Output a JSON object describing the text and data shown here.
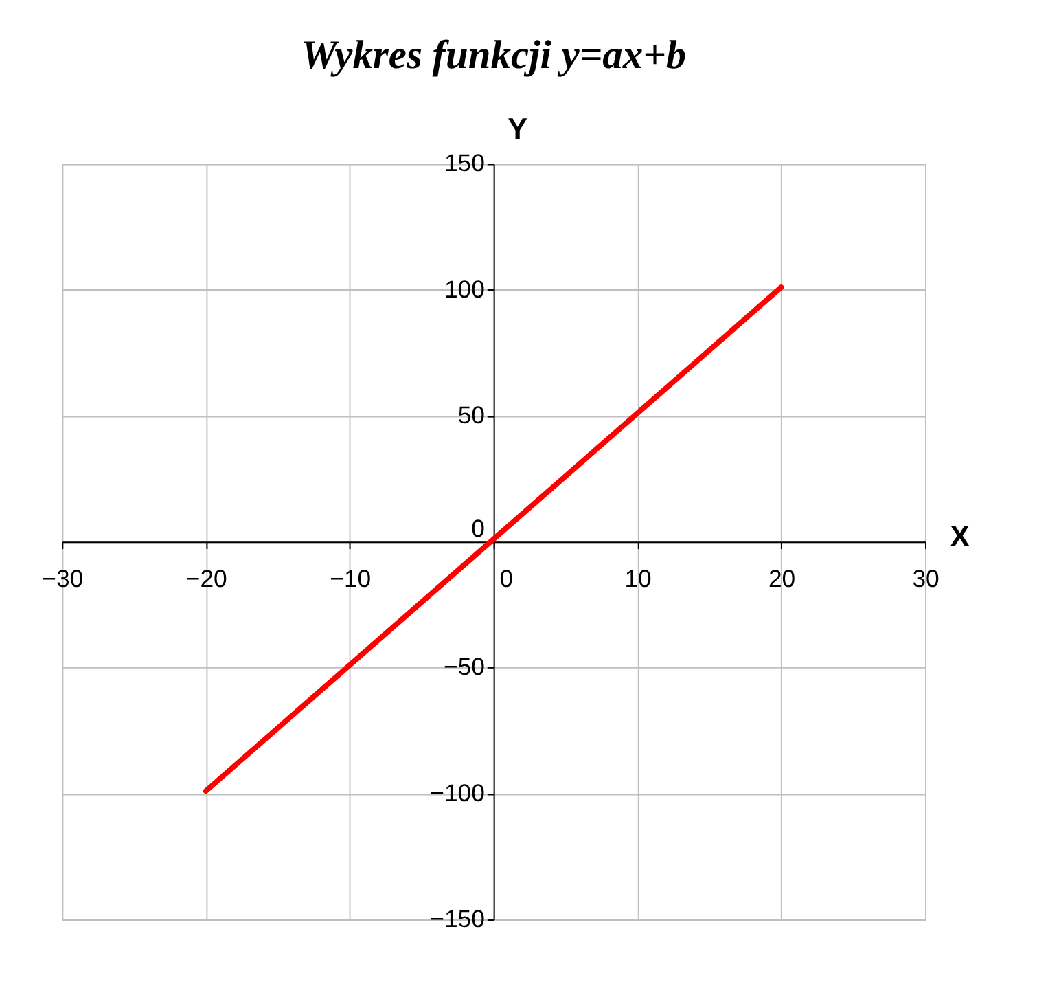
{
  "chart_data": {
    "type": "line",
    "title": "Wykres funkcji y=ax+b",
    "xlabel": "X",
    "ylabel": "Y",
    "x": [
      -20,
      20
    ],
    "series": [
      {
        "color": "#ff0000",
        "values": [
          -99,
          101
        ]
      }
    ],
    "xlim": [
      -30,
      30
    ],
    "xticks": [
      -30,
      -20,
      -10,
      0,
      10,
      20,
      30
    ],
    "ylim": [
      -150,
      150
    ],
    "yticks": [
      -150,
      -100,
      -50,
      0,
      50,
      100,
      150
    ],
    "grid": true,
    "legend": false,
    "marker": "none",
    "line_style": "solid"
  }
}
